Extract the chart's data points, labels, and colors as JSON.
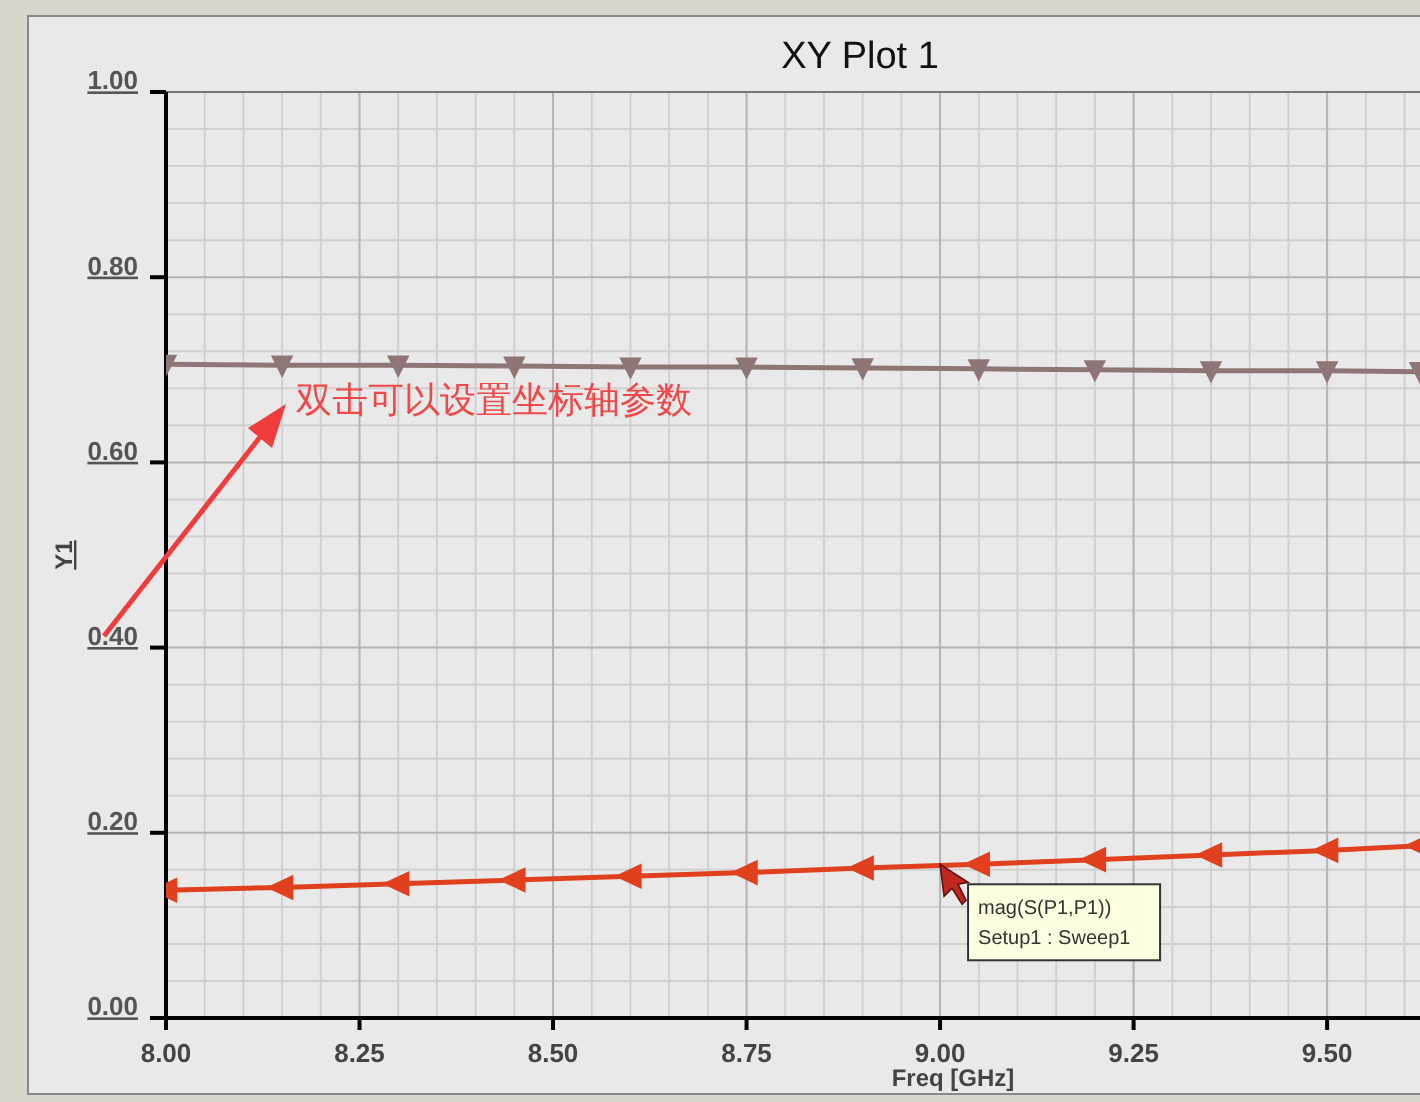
{
  "chart_data": {
    "type": "line",
    "title": "XY Plot 1",
    "xlabel": "Freq [GHz]",
    "ylabel": "Y1",
    "x": [
      8.0,
      8.15,
      8.3,
      8.45,
      8.6,
      8.75,
      8.9,
      9.05,
      9.2,
      9.35,
      9.5,
      9.62
    ],
    "series": [
      {
        "color": "#e0401e",
        "marker": "triangle",
        "values": [
          0.138,
          0.141,
          0.145,
          0.149,
          0.153,
          0.157,
          0.162,
          0.166,
          0.171,
          0.176,
          0.181,
          0.186
        ]
      },
      {
        "color": "#8f7676",
        "marker": "triangle",
        "values": [
          0.706,
          0.705,
          0.705,
          0.704,
          0.703,
          0.703,
          0.702,
          0.701,
          0.7,
          0.699,
          0.699,
          0.698
        ]
      }
    ],
    "xlim": [
      8.0,
      9.62
    ],
    "ylim": [
      0,
      1
    ],
    "xticks": [
      {
        "value": 8,
        "label": "8.00"
      },
      {
        "value": 8.25,
        "label": "8.25"
      },
      {
        "value": 8.5,
        "label": "8.50"
      },
      {
        "value": 8.75,
        "label": "8.75"
      },
      {
        "value": 9,
        "label": "9.00"
      },
      {
        "value": 9.25,
        "label": "9.25"
      },
      {
        "value": 9.5,
        "label": "9.50"
      }
    ],
    "yticks": [
      {
        "value": 0,
        "label": "0.00"
      },
      {
        "value": 0.2,
        "label": "0.20"
      },
      {
        "value": 0.4,
        "label": "0.40"
      },
      {
        "value": 0.6,
        "label": "0.60"
      },
      {
        "value": 0.8,
        "label": "0.80"
      },
      {
        "value": 1,
        "label": "1.00"
      }
    ],
    "grid": true,
    "line_style": "solid",
    "annotations": [
      "双击可以设置坐标轴参数",
      {
        "text": "mag(S(P1,P1))\nSetup1 : Sweep1",
        "x": 9.0,
        "y": 0.166
      }
    ]
  }
}
